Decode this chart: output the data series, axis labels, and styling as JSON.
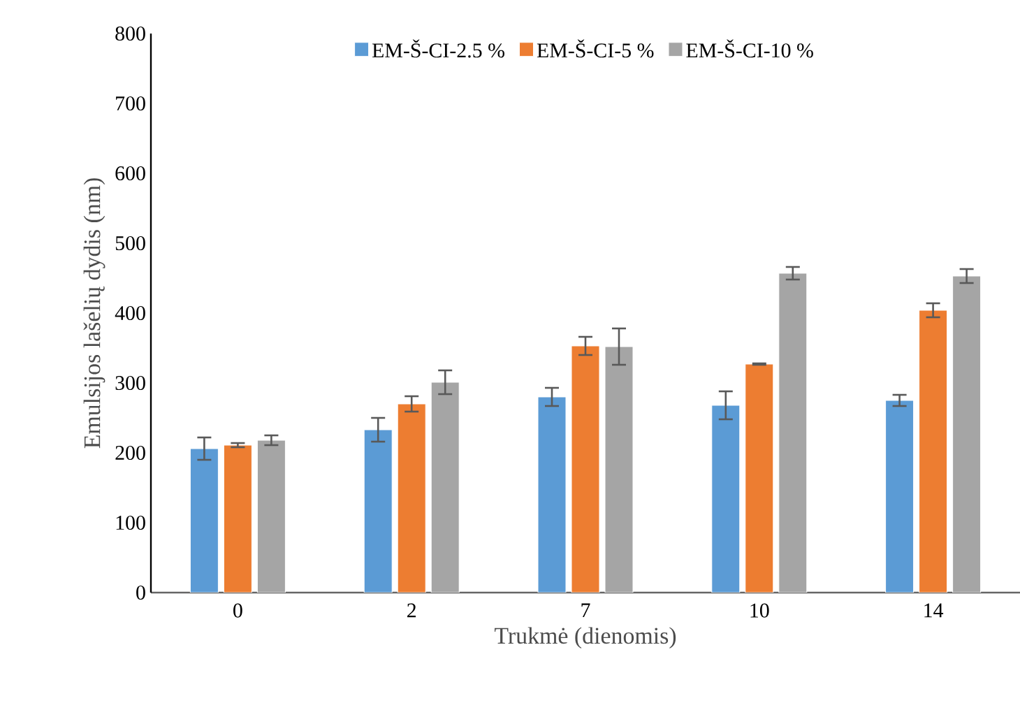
{
  "chart_data": {
    "type": "bar",
    "xlabel": "Trukmė (dienomis)",
    "ylabel": "Emulsijos lašelių dydis (nm)",
    "categories": [
      "0",
      "2",
      "7",
      "10",
      "14"
    ],
    "series": [
      {
        "name": "EM-Š-CI-2.5 %",
        "color": "#5b9bd5",
        "values": [
          206,
          233,
          280,
          268,
          275
        ],
        "errors": [
          16,
          17,
          13,
          20,
          8
        ]
      },
      {
        "name": "EM-Š-CI-5 %",
        "color": "#ed7d31",
        "values": [
          211,
          270,
          353,
          327,
          404
        ],
        "errors": [
          3,
          11,
          13,
          1,
          10
        ]
      },
      {
        "name": "EM-Š-CI-10 %",
        "color": "#a5a5a5",
        "values": [
          218,
          301,
          352,
          457,
          453
        ],
        "errors": [
          7,
          17,
          26,
          9,
          10
        ]
      }
    ],
    "ylim": [
      0,
      800
    ],
    "yticks": [
      0,
      100,
      200,
      300,
      400,
      500,
      600,
      700,
      800
    ],
    "grid": false,
    "legend": "top"
  }
}
